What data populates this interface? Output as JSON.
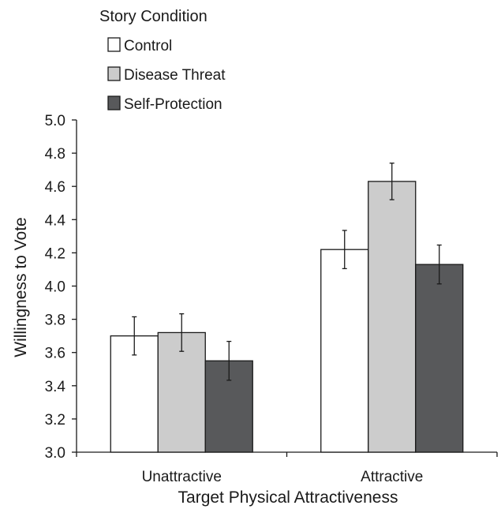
{
  "chart_data": {
    "type": "bar",
    "title": "",
    "xlabel": "Target Physical Attractiveness",
    "ylabel": "Willingness to Vote",
    "ylim": [
      3.0,
      5.0
    ],
    "yticks": [
      "3.0",
      "3.2",
      "3.4",
      "3.6",
      "3.8",
      "4.0",
      "4.2",
      "4.4",
      "4.6",
      "4.8",
      "5.0"
    ],
    "categories": [
      "Unattractive",
      "Attractive"
    ],
    "legend": {
      "title": "Story Condition",
      "placement": "top-left"
    },
    "error_bars": true,
    "grid": false,
    "series": [
      {
        "name": "Control",
        "color": "#ffffff",
        "values": [
          3.7,
          4.22
        ],
        "errors": [
          0.115,
          0.115
        ]
      },
      {
        "name": "Disease Threat",
        "color": "#cccccc",
        "values": [
          3.72,
          4.63
        ],
        "errors": [
          0.113,
          0.11
        ]
      },
      {
        "name": "Self-Protection",
        "color": "#58595b",
        "values": [
          3.55,
          4.13
        ],
        "errors": [
          0.117,
          0.117
        ]
      }
    ]
  }
}
